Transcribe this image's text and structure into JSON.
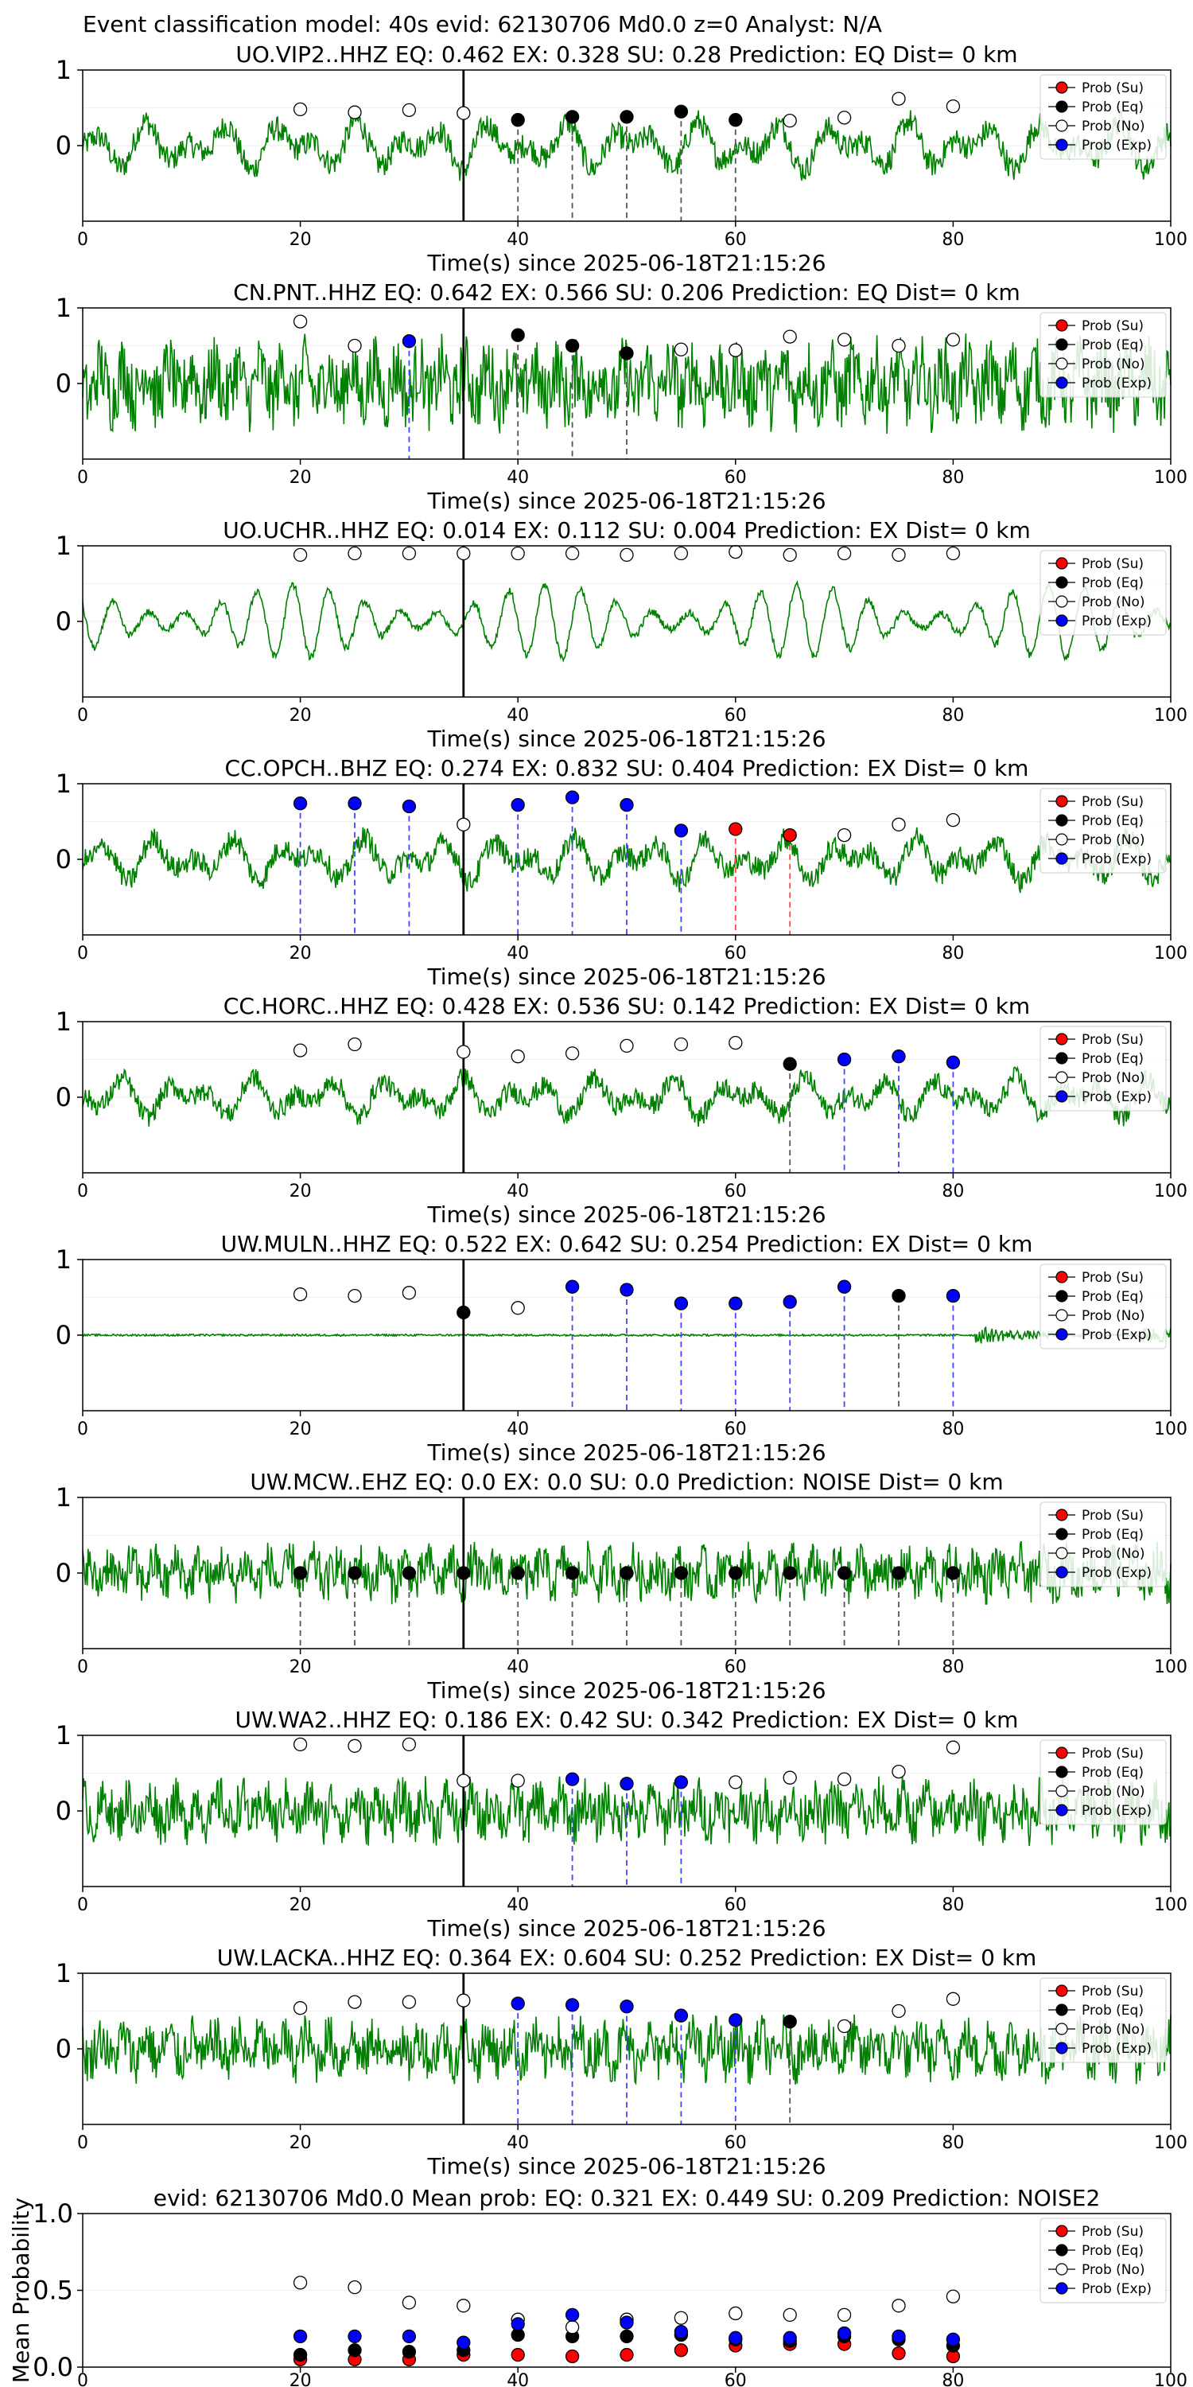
{
  "suptitle": "Event classification model: 40s evid: 62130706 Md0.0 z=0 Analyst: N/A",
  "colors": {
    "waveform": "#008000",
    "su": "#ff0000",
    "eq": "#000000",
    "no": "#ffffff",
    "exp": "#0000ff",
    "dashed_eq": "#555555",
    "dashed_exp": "#4444ff",
    "dashed_su": "#ff4444"
  },
  "legend": [
    "Prob (Su)",
    "Prob (Eq)",
    "Prob (No)",
    "Prob (Exp)"
  ],
  "chart_data": [
    {
      "type": "line",
      "title": "UO.VIP2..HHZ   EQ: 0.462  EX: 0.328  SU: 0.28   Prediction: EQ    Dist= 0 km",
      "xlabel": "Time(s) since 2025-06-18T21:15:26",
      "xlim": [
        0,
        100
      ],
      "ylim": [
        -1,
        1
      ],
      "xticks": [
        0,
        20,
        40,
        60,
        80,
        100
      ],
      "yticks": [
        0,
        1
      ],
      "pick_time": 35,
      "amp": 0.55,
      "style": "mixed",
      "points": [
        {
          "t": 20,
          "p": 0.48,
          "c": "no"
        },
        {
          "t": 25,
          "p": 0.44,
          "c": "no"
        },
        {
          "t": 30,
          "p": 0.47,
          "c": "no"
        },
        {
          "t": 35,
          "p": 0.43,
          "c": "no"
        },
        {
          "t": 40,
          "p": 0.34,
          "c": "eq"
        },
        {
          "t": 45,
          "p": 0.38,
          "c": "eq"
        },
        {
          "t": 50,
          "p": 0.38,
          "c": "eq"
        },
        {
          "t": 55,
          "p": 0.45,
          "c": "eq"
        },
        {
          "t": 60,
          "p": 0.34,
          "c": "eq"
        },
        {
          "t": 65,
          "p": 0.33,
          "c": "no"
        },
        {
          "t": 70,
          "p": 0.37,
          "c": "no"
        },
        {
          "t": 75,
          "p": 0.62,
          "c": "no"
        },
        {
          "t": 80,
          "p": 0.52,
          "c": "no"
        }
      ]
    },
    {
      "type": "line",
      "title": "CN.PNT..HHZ   EQ: 0.642  EX: 0.566  SU: 0.206   Prediction: EQ    Dist= 0 km",
      "xlabel": "Time(s) since 2025-06-18T21:15:26",
      "xlim": [
        0,
        100
      ],
      "ylim": [
        -1,
        1
      ],
      "xticks": [
        0,
        20,
        40,
        60,
        80,
        100
      ],
      "yticks": [
        0,
        1
      ],
      "pick_time": 35,
      "amp": 0.7,
      "style": "noisy",
      "points": [
        {
          "t": 20,
          "p": 0.82,
          "c": "no"
        },
        {
          "t": 25,
          "p": 0.5,
          "c": "no"
        },
        {
          "t": 30,
          "p": 0.56,
          "c": "exp"
        },
        {
          "t": 40,
          "p": 0.64,
          "c": "eq"
        },
        {
          "t": 45,
          "p": 0.5,
          "c": "eq"
        },
        {
          "t": 50,
          "p": 0.4,
          "c": "eq"
        },
        {
          "t": 55,
          "p": 0.45,
          "c": "no"
        },
        {
          "t": 60,
          "p": 0.44,
          "c": "no"
        },
        {
          "t": 65,
          "p": 0.62,
          "c": "no"
        },
        {
          "t": 70,
          "p": 0.58,
          "c": "no"
        },
        {
          "t": 75,
          "p": 0.5,
          "c": "no"
        },
        {
          "t": 80,
          "p": 0.58,
          "c": "no"
        }
      ]
    },
    {
      "type": "line",
      "title": "UO.UCHR..HHZ   EQ: 0.014  EX: 0.112  SU: 0.004   Prediction: EX    Dist= 0 km",
      "xlabel": "Time(s) since 2025-06-18T21:15:26",
      "xlim": [
        0,
        100
      ],
      "ylim": [
        -1,
        1
      ],
      "xticks": [
        0,
        20,
        40,
        60,
        80,
        100
      ],
      "yticks": [
        0,
        1
      ],
      "pick_time": 35,
      "amp": 0.65,
      "style": "smooth",
      "points": [
        {
          "t": 20,
          "p": 0.88,
          "c": "no"
        },
        {
          "t": 25,
          "p": 0.9,
          "c": "no"
        },
        {
          "t": 30,
          "p": 0.9,
          "c": "no"
        },
        {
          "t": 35,
          "p": 0.9,
          "c": "no"
        },
        {
          "t": 40,
          "p": 0.9,
          "c": "no"
        },
        {
          "t": 45,
          "p": 0.9,
          "c": "no"
        },
        {
          "t": 50,
          "p": 0.88,
          "c": "no"
        },
        {
          "t": 55,
          "p": 0.9,
          "c": "no"
        },
        {
          "t": 60,
          "p": 0.92,
          "c": "no"
        },
        {
          "t": 65,
          "p": 0.88,
          "c": "no"
        },
        {
          "t": 70,
          "p": 0.9,
          "c": "no"
        },
        {
          "t": 75,
          "p": 0.88,
          "c": "no"
        },
        {
          "t": 80,
          "p": 0.9,
          "c": "no"
        }
      ]
    },
    {
      "type": "line",
      "title": "CC.OPCH..BHZ   EQ: 0.274  EX: 0.832  SU: 0.404   Prediction: EX    Dist= 0 km",
      "xlabel": "Time(s) since 2025-06-18T21:15:26",
      "xlim": [
        0,
        100
      ],
      "ylim": [
        -1,
        1
      ],
      "xticks": [
        0,
        20,
        40,
        60,
        80,
        100
      ],
      "yticks": [
        0,
        1
      ],
      "pick_time": 35,
      "amp": 0.5,
      "style": "mixed",
      "points": [
        {
          "t": 20,
          "p": 0.74,
          "c": "exp"
        },
        {
          "t": 25,
          "p": 0.74,
          "c": "exp"
        },
        {
          "t": 30,
          "p": 0.7,
          "c": "exp"
        },
        {
          "t": 35,
          "p": 0.46,
          "c": "no"
        },
        {
          "t": 40,
          "p": 0.72,
          "c": "exp"
        },
        {
          "t": 45,
          "p": 0.82,
          "c": "exp"
        },
        {
          "t": 50,
          "p": 0.72,
          "c": "exp"
        },
        {
          "t": 55,
          "p": 0.38,
          "c": "exp"
        },
        {
          "t": 60,
          "p": 0.4,
          "c": "su"
        },
        {
          "t": 65,
          "p": 0.32,
          "c": "su"
        },
        {
          "t": 70,
          "p": 0.32,
          "c": "no"
        },
        {
          "t": 75,
          "p": 0.46,
          "c": "no"
        },
        {
          "t": 80,
          "p": 0.52,
          "c": "no"
        }
      ]
    },
    {
      "type": "line",
      "title": "CC.HORC..HHZ   EQ: 0.428  EX: 0.536  SU: 0.142   Prediction: EX    Dist= 0 km",
      "xlabel": "Time(s) since 2025-06-18T21:15:26",
      "xlim": [
        0,
        100
      ],
      "ylim": [
        -1,
        1
      ],
      "xticks": [
        0,
        20,
        40,
        60,
        80,
        100
      ],
      "yticks": [
        0,
        1
      ],
      "pick_time": 35,
      "amp": 0.45,
      "style": "mixed",
      "points": [
        {
          "t": 20,
          "p": 0.62,
          "c": "no"
        },
        {
          "t": 25,
          "p": 0.7,
          "c": "no"
        },
        {
          "t": 35,
          "p": 0.6,
          "c": "no"
        },
        {
          "t": 40,
          "p": 0.54,
          "c": "no"
        },
        {
          "t": 45,
          "p": 0.58,
          "c": "no"
        },
        {
          "t": 50,
          "p": 0.68,
          "c": "no"
        },
        {
          "t": 55,
          "p": 0.7,
          "c": "no"
        },
        {
          "t": 60,
          "p": 0.72,
          "c": "no"
        },
        {
          "t": 65,
          "p": 0.44,
          "c": "eq"
        },
        {
          "t": 70,
          "p": 0.5,
          "c": "exp"
        },
        {
          "t": 75,
          "p": 0.54,
          "c": "exp"
        },
        {
          "t": 80,
          "p": 0.46,
          "c": "exp"
        }
      ]
    },
    {
      "type": "line",
      "title": "UW.MULN..HHZ   EQ: 0.522  EX: 0.642  SU: 0.254   Prediction: EX    Dist= 0 km",
      "xlabel": "Time(s) since 2025-06-18T21:15:26",
      "xlim": [
        0,
        100
      ],
      "ylim": [
        -1,
        1
      ],
      "xticks": [
        0,
        20,
        40,
        60,
        80,
        100
      ],
      "yticks": [
        0,
        1
      ],
      "pick_time": 35,
      "amp": 0.05,
      "style": "quiet",
      "points": [
        {
          "t": 20,
          "p": 0.54,
          "c": "no"
        },
        {
          "t": 25,
          "p": 0.52,
          "c": "no"
        },
        {
          "t": 30,
          "p": 0.56,
          "c": "no"
        },
        {
          "t": 35,
          "p": 0.3,
          "c": "eq"
        },
        {
          "t": 40,
          "p": 0.36,
          "c": "no"
        },
        {
          "t": 45,
          "p": 0.64,
          "c": "exp"
        },
        {
          "t": 50,
          "p": 0.6,
          "c": "exp"
        },
        {
          "t": 55,
          "p": 0.42,
          "c": "exp"
        },
        {
          "t": 60,
          "p": 0.42,
          "c": "exp"
        },
        {
          "t": 65,
          "p": 0.44,
          "c": "exp"
        },
        {
          "t": 70,
          "p": 0.64,
          "c": "exp"
        },
        {
          "t": 75,
          "p": 0.52,
          "c": "eq"
        },
        {
          "t": 80,
          "p": 0.52,
          "c": "exp"
        }
      ]
    },
    {
      "type": "line",
      "title": "UW.MCW..EHZ   EQ: 0.0  EX: 0.0  SU: 0.0   Prediction: NOISE    Dist= 0 km",
      "xlabel": "Time(s) since 2025-06-18T21:15:26",
      "xlim": [
        0,
        100
      ],
      "ylim": [
        -1,
        1
      ],
      "xticks": [
        0,
        20,
        40,
        60,
        80,
        100
      ],
      "yticks": [
        0,
        1
      ],
      "pick_time": 35,
      "amp": 0.45,
      "style": "noisy",
      "points": [
        {
          "t": 20,
          "p": 0.0,
          "c": "eq"
        },
        {
          "t": 25,
          "p": 0.0,
          "c": "eq"
        },
        {
          "t": 30,
          "p": 0.0,
          "c": "eq"
        },
        {
          "t": 35,
          "p": 0.0,
          "c": "eq"
        },
        {
          "t": 40,
          "p": 0.0,
          "c": "eq"
        },
        {
          "t": 45,
          "p": 0.0,
          "c": "eq"
        },
        {
          "t": 50,
          "p": 0.0,
          "c": "eq"
        },
        {
          "t": 55,
          "p": 0.0,
          "c": "eq"
        },
        {
          "t": 60,
          "p": 0.0,
          "c": "eq"
        },
        {
          "t": 65,
          "p": 0.0,
          "c": "eq"
        },
        {
          "t": 70,
          "p": 0.0,
          "c": "eq"
        },
        {
          "t": 75,
          "p": 0.0,
          "c": "eq"
        },
        {
          "t": 80,
          "p": 0.0,
          "c": "eq"
        }
      ]
    },
    {
      "type": "line",
      "title": "UW.WA2..HHZ   EQ: 0.186  EX: 0.42  SU: 0.342   Prediction: EX    Dist= 0 km",
      "xlabel": "Time(s) since 2025-06-18T21:15:26",
      "xlim": [
        0,
        100
      ],
      "ylim": [
        -1,
        1
      ],
      "xticks": [
        0,
        20,
        40,
        60,
        80,
        100
      ],
      "yticks": [
        0,
        1
      ],
      "pick_time": 35,
      "amp": 0.5,
      "style": "noisy",
      "points": [
        {
          "t": 20,
          "p": 0.88,
          "c": "no"
        },
        {
          "t": 25,
          "p": 0.86,
          "c": "no"
        },
        {
          "t": 30,
          "p": 0.88,
          "c": "no"
        },
        {
          "t": 35,
          "p": 0.4,
          "c": "no"
        },
        {
          "t": 40,
          "p": 0.4,
          "c": "no"
        },
        {
          "t": 45,
          "p": 0.42,
          "c": "exp"
        },
        {
          "t": 50,
          "p": 0.36,
          "c": "exp"
        },
        {
          "t": 55,
          "p": 0.38,
          "c": "exp"
        },
        {
          "t": 60,
          "p": 0.38,
          "c": "no"
        },
        {
          "t": 65,
          "p": 0.44,
          "c": "no"
        },
        {
          "t": 70,
          "p": 0.42,
          "c": "no"
        },
        {
          "t": 75,
          "p": 0.52,
          "c": "no"
        },
        {
          "t": 80,
          "p": 0.84,
          "c": "no"
        }
      ]
    },
    {
      "type": "line",
      "title": "UW.LACKA..HHZ   EQ: 0.364  EX: 0.604  SU: 0.252   Prediction: EX    Dist= 0 km",
      "xlabel": "Time(s) since 2025-06-18T21:15:26",
      "xlim": [
        0,
        100
      ],
      "ylim": [
        -1,
        1
      ],
      "xticks": [
        0,
        20,
        40,
        60,
        80,
        100
      ],
      "yticks": [
        0,
        1
      ],
      "pick_time": 35,
      "amp": 0.5,
      "style": "noisy",
      "points": [
        {
          "t": 20,
          "p": 0.54,
          "c": "no"
        },
        {
          "t": 25,
          "p": 0.62,
          "c": "no"
        },
        {
          "t": 30,
          "p": 0.62,
          "c": "no"
        },
        {
          "t": 35,
          "p": 0.64,
          "c": "no"
        },
        {
          "t": 40,
          "p": 0.6,
          "c": "exp"
        },
        {
          "t": 45,
          "p": 0.58,
          "c": "exp"
        },
        {
          "t": 50,
          "p": 0.56,
          "c": "exp"
        },
        {
          "t": 55,
          "p": 0.44,
          "c": "exp"
        },
        {
          "t": 60,
          "p": 0.38,
          "c": "exp"
        },
        {
          "t": 65,
          "p": 0.36,
          "c": "eq"
        },
        {
          "t": 70,
          "p": 0.3,
          "c": "no"
        },
        {
          "t": 75,
          "p": 0.5,
          "c": "no"
        },
        {
          "t": 80,
          "p": 0.66,
          "c": "no"
        }
      ]
    },
    {
      "type": "scatter",
      "title": "evid: 62130706  Md0.0   Mean prob:    EQ: 0.321  EX: 0.449  SU: 0.209   Prediction: NOISE2",
      "ylabel": "Mean Probability",
      "xlim": [
        0,
        100
      ],
      "ylim": [
        0,
        1
      ],
      "xticks": [
        0,
        20,
        40,
        60,
        80,
        100
      ],
      "yticks": [
        0.0,
        0.5,
        1.0
      ],
      "ytick_labels": [
        "0.0",
        "0.5",
        "1.0"
      ],
      "x": [
        20,
        25,
        30,
        35,
        40,
        45,
        50,
        55,
        60,
        65,
        70,
        75,
        80
      ],
      "series": [
        {
          "name": "Prob (Su)",
          "c": "su",
          "values": [
            0.05,
            0.05,
            0.05,
            0.08,
            0.08,
            0.07,
            0.08,
            0.11,
            0.14,
            0.15,
            0.15,
            0.09,
            0.07
          ]
        },
        {
          "name": "Prob (Eq)",
          "c": "eq",
          "values": [
            0.08,
            0.11,
            0.1,
            0.11,
            0.21,
            0.2,
            0.2,
            0.21,
            0.18,
            0.17,
            0.2,
            0.18,
            0.14
          ]
        },
        {
          "name": "Prob (No)",
          "c": "no",
          "values": [
            0.55,
            0.52,
            0.42,
            0.4,
            0.31,
            0.26,
            0.31,
            0.32,
            0.35,
            0.34,
            0.34,
            0.4,
            0.46
          ]
        },
        {
          "name": "Prob (Exp)",
          "c": "exp",
          "values": [
            0.2,
            0.2,
            0.2,
            0.16,
            0.28,
            0.34,
            0.29,
            0.23,
            0.19,
            0.19,
            0.22,
            0.2,
            0.18
          ]
        }
      ]
    }
  ]
}
